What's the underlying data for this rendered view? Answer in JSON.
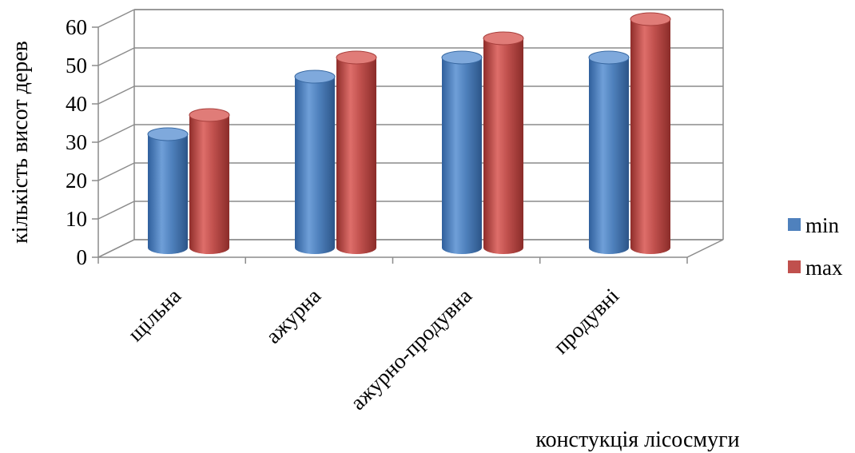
{
  "chart_data": {
    "type": "bar",
    "style": "3d-cylinder",
    "categories": [
      "щільна",
      "ажурна",
      "ажурно-продувна",
      "продувні"
    ],
    "series": [
      {
        "name": "min",
        "values": [
          30,
          45,
          50,
          50
        ],
        "color": "#4F81BD"
      },
      {
        "name": "max",
        "values": [
          35,
          50,
          55,
          60
        ],
        "color": "#C0504D"
      }
    ],
    "title": "",
    "xlabel": "констукція лісосмуги",
    "ylabel": "кількість висот дерев",
    "ylim": [
      0,
      60
    ],
    "yticks": [
      0,
      10,
      20,
      30,
      40,
      50,
      60
    ],
    "grid": true,
    "legend": "right"
  }
}
